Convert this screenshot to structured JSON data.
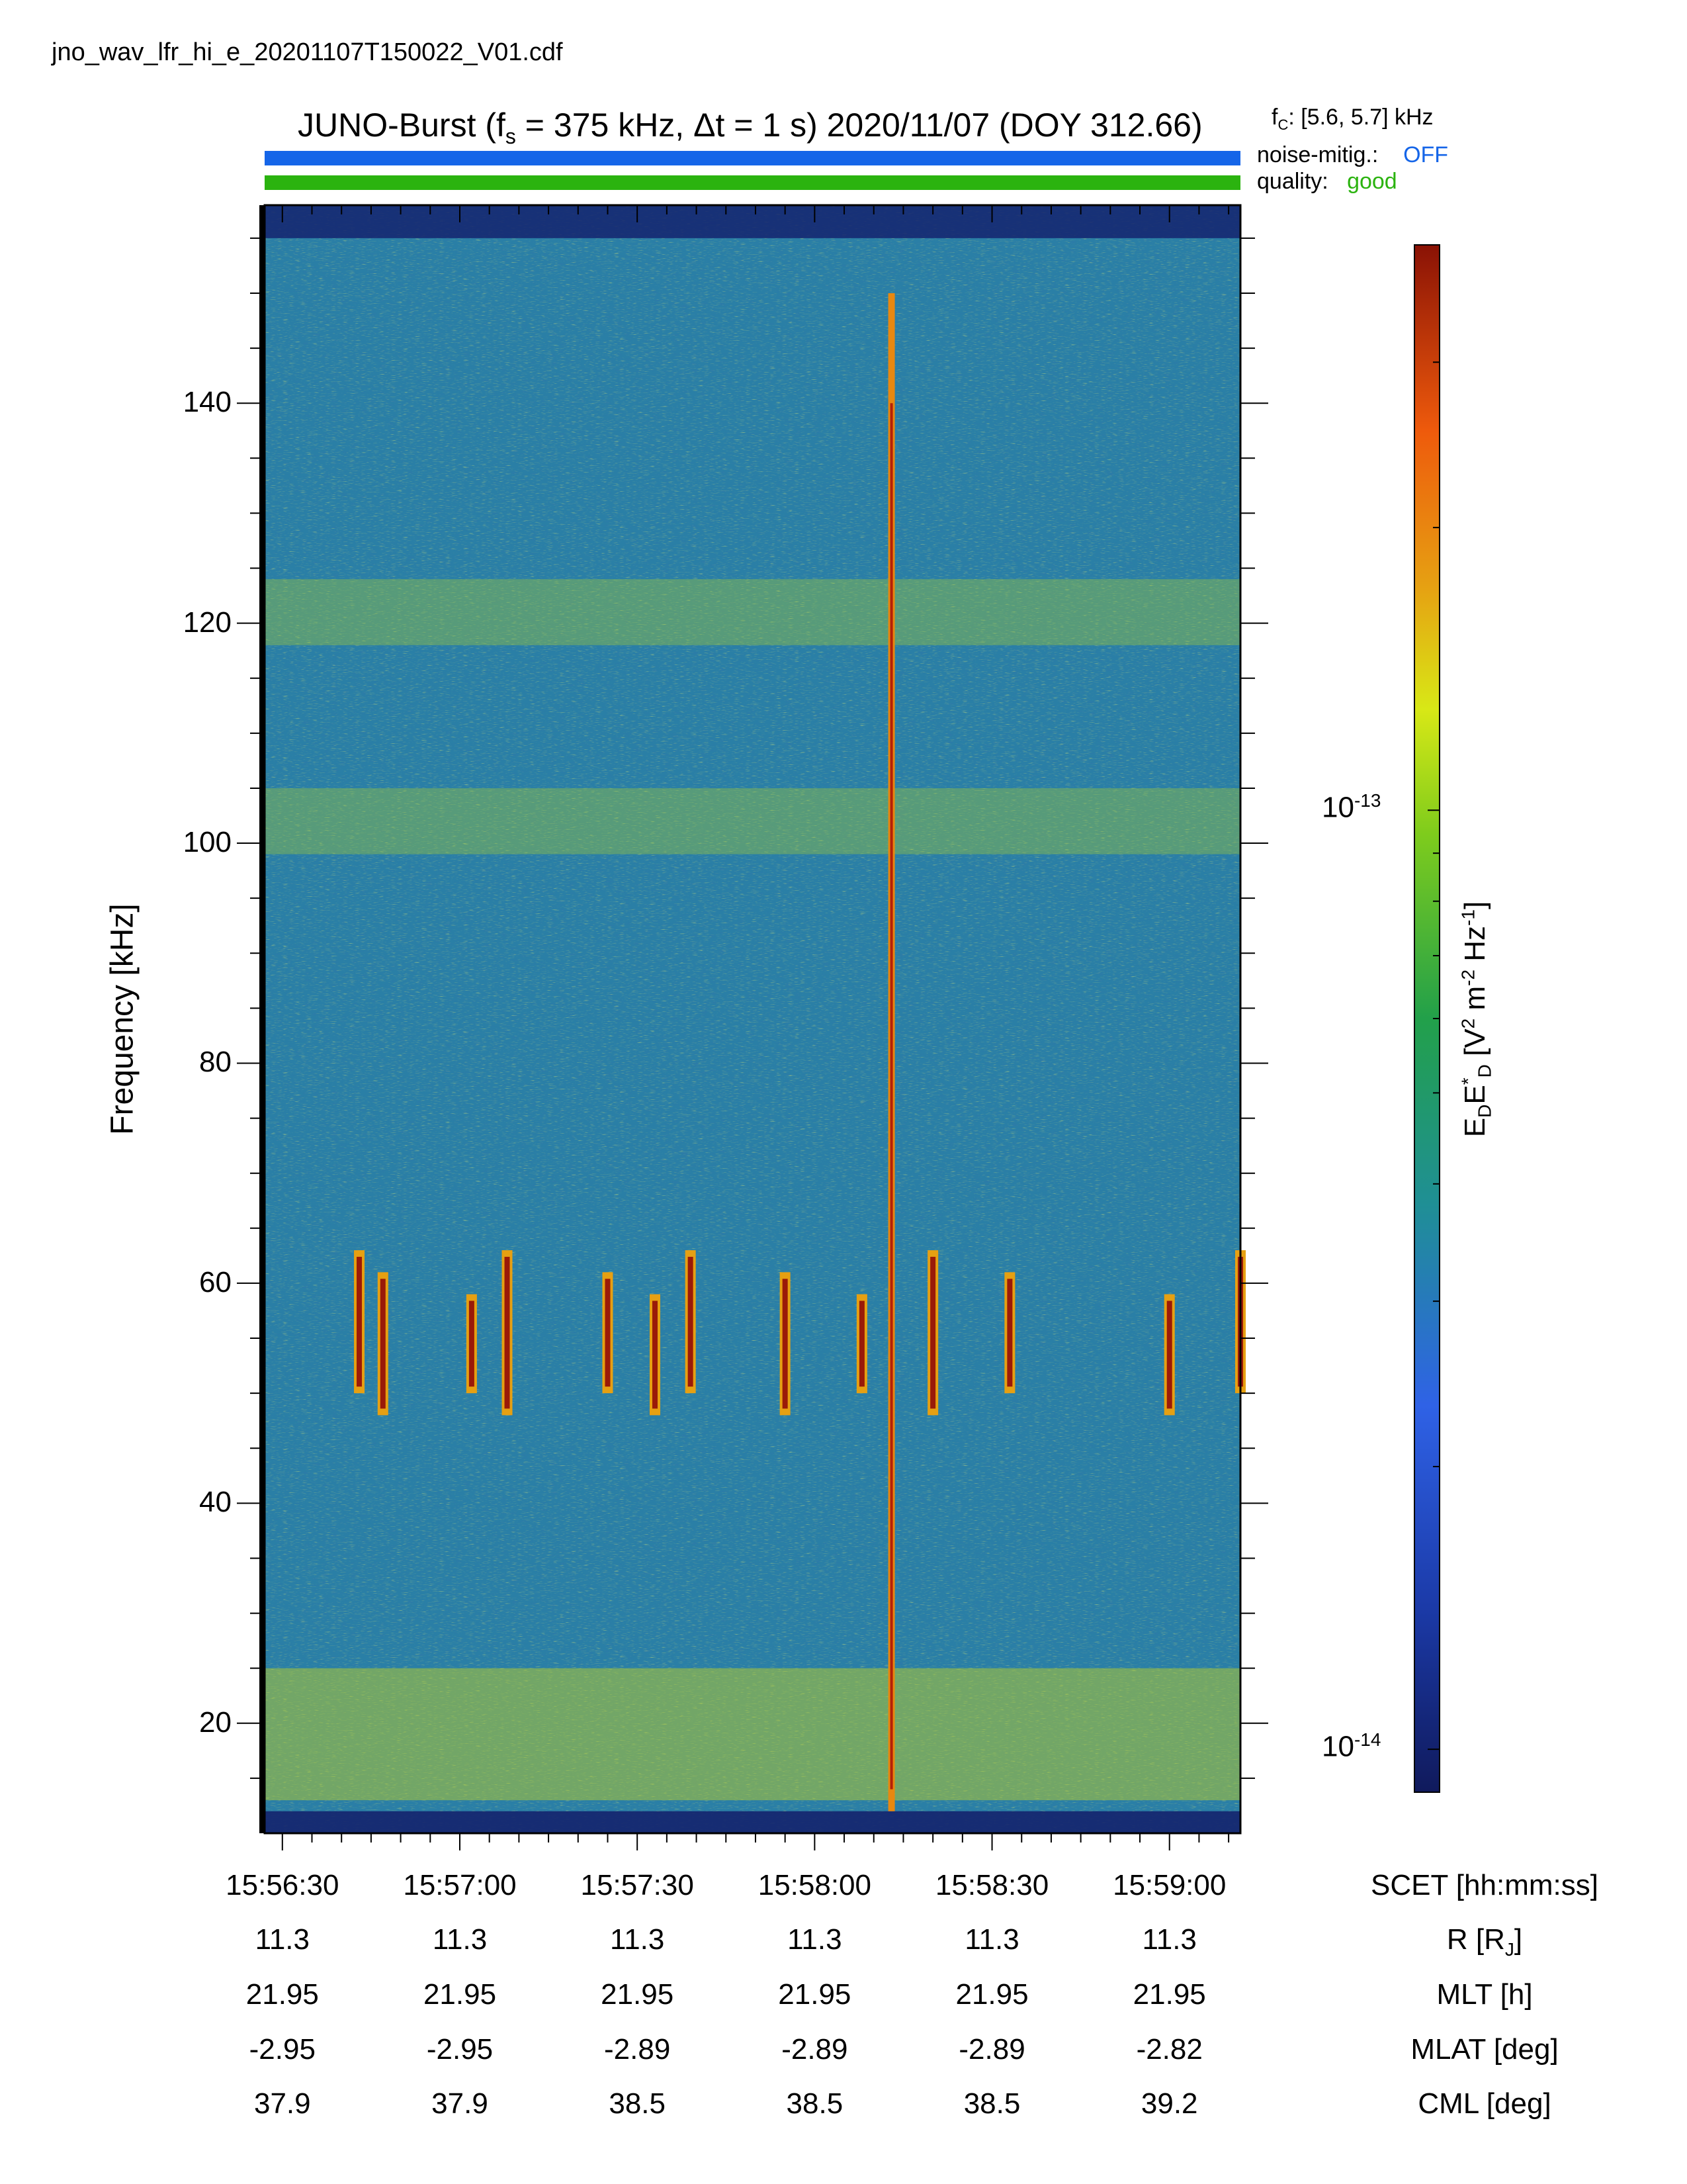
{
  "file_name": "jno_wav_lfr_hi_e_20201107T150022_V01.cdf",
  "colors": {
    "noise_bar": "#1565e8",
    "quality_bar": "#2bb30f",
    "off_text": "#1565e8",
    "good_text": "#2bb30f"
  },
  "header": {
    "title_prefix": "JUNO-Burst (f",
    "title_sub": "s",
    "title_rest": " = 375 kHz, Δt = 1 s)  2020/11/07 (DOY 312.66)",
    "fc_prefix": "f",
    "fc_sub": "C",
    "fc_rest": ": [5.6, 5.7] kHz",
    "noise_label": "noise-mitig.:",
    "noise_value": "OFF",
    "quality_label": "quality:",
    "quality_value": "good"
  },
  "chart_data": {
    "type": "heatmap",
    "title": "JUNO-Burst (fs = 375 kHz, Δt = 1 s)  2020/11/07 (DOY 312.66)",
    "ylabel": "Frequency [kHz]",
    "ylim": [
      10,
      158
    ],
    "yticks": [
      20,
      40,
      60,
      80,
      100,
      120,
      140
    ],
    "xlim": [
      "15:56:27",
      "15:59:12"
    ],
    "xticks": [
      "15:56:30",
      "15:57:00",
      "15:57:30",
      "15:58:00",
      "15:58:30",
      "15:59:00"
    ],
    "colorbar": {
      "label": "E_D E*_D [V² m⁻² Hz⁻¹]",
      "scale": "log",
      "range": [
        9e-15,
        4e-13
      ],
      "ticks": [
        {
          "base": "10",
          "exp": "-13",
          "value": 1e-13
        },
        {
          "base": "10",
          "exp": "-14",
          "value": 1e-14
        }
      ]
    },
    "features": {
      "vertical_line_time": "15:58:13",
      "bursts_band_khz": [
        50,
        63
      ],
      "burst_times": [
        "15:56:43",
        "15:56:47",
        "15:57:02",
        "15:57:08",
        "15:57:25",
        "15:57:33",
        "15:57:39",
        "15:57:55",
        "15:58:08",
        "15:58:20",
        "15:58:33",
        "15:59:00",
        "15:59:12"
      ],
      "bands_khz": [
        102,
        121
      ],
      "low_band_khz": [
        13,
        25
      ]
    },
    "ephemeris_rows": [
      {
        "label": "SCET [hh:mm:ss]",
        "values": [
          "15:56:30",
          "15:57:00",
          "15:57:30",
          "15:58:00",
          "15:58:30",
          "15:59:00"
        ]
      },
      {
        "label": "R [R_J]",
        "values": [
          "11.3",
          "11.3",
          "11.3",
          "11.3",
          "11.3",
          "11.3"
        ]
      },
      {
        "label": "MLT [h]",
        "values": [
          "21.95",
          "21.95",
          "21.95",
          "21.95",
          "21.95",
          "21.95"
        ]
      },
      {
        "label": "MLAT [deg]",
        "values": [
          "-2.95",
          "-2.95",
          "-2.89",
          "-2.89",
          "-2.89",
          "-2.82"
        ]
      },
      {
        "label": "CML [deg]",
        "values": [
          "37.9",
          "37.9",
          "38.5",
          "38.5",
          "38.5",
          "39.2"
        ]
      }
    ]
  }
}
